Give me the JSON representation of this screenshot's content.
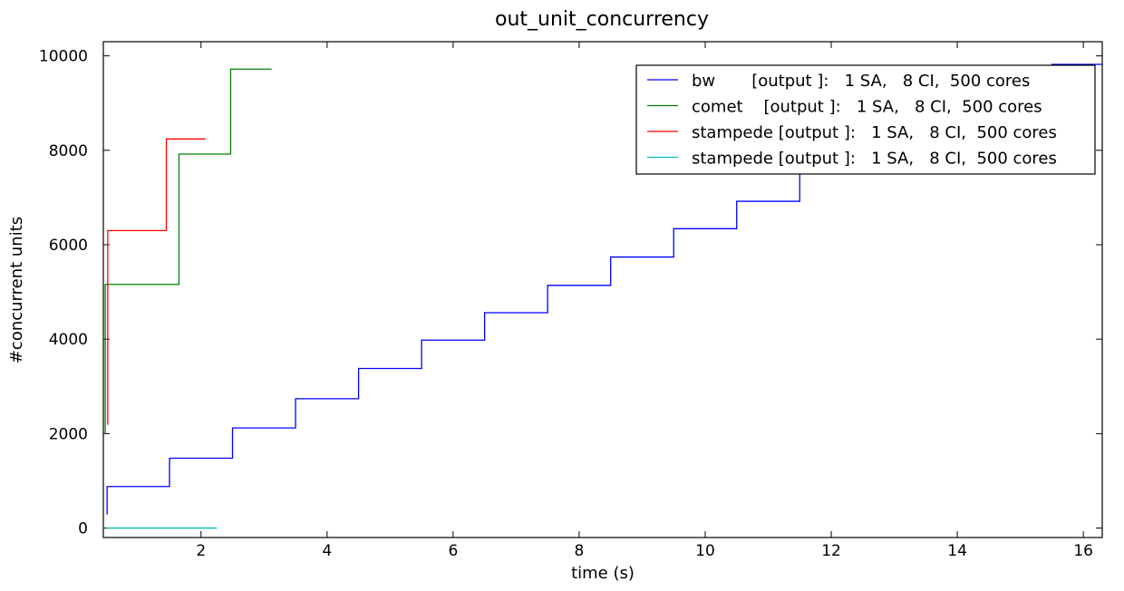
{
  "chart_data": {
    "type": "line",
    "title": "out_unit_concurrency",
    "xlabel": "time (s)",
    "ylabel": "#concurrent units",
    "xlim": [
      0.45,
      16.3
    ],
    "ylim": [
      -200,
      10300
    ],
    "x_ticks": [
      2,
      4,
      6,
      8,
      10,
      12,
      14,
      16
    ],
    "y_ticks": [
      0,
      2000,
      4000,
      6000,
      8000,
      10000
    ],
    "grid": false,
    "legend_position": "upper right",
    "series": [
      {
        "name": "bw       [output ]:   1 SA,   8 CI,  500 cores",
        "color": "#0000ff",
        "step": true,
        "x": [
          0.5,
          0.51,
          1.5,
          2.5,
          3.5,
          4.5,
          5.5,
          6.5,
          7.5,
          8.5,
          9.5,
          10.5,
          11.5,
          12.5,
          13.5,
          14.5,
          15.5,
          16.3
        ],
        "y": [
          300,
          880,
          1480,
          2120,
          2740,
          3380,
          3980,
          4560,
          5140,
          5740,
          6340,
          6920,
          7540,
          8140,
          8740,
          9320,
          9820,
          9820
        ]
      },
      {
        "name": "comet    [output ]:   1 SA,   8 CI,  500 cores",
        "color": "#008000",
        "step": true,
        "x": [
          0.47,
          0.48,
          1.65,
          2.47,
          3.12
        ],
        "y": [
          2000,
          5160,
          7920,
          9720,
          9720
        ]
      },
      {
        "name": "stampede [output ]:   1 SA,   8 CI,  500 cores",
        "color": "#ff0000",
        "step": true,
        "x": [
          0.51,
          0.52,
          1.45,
          2.07
        ],
        "y": [
          2200,
          6300,
          8240,
          8240
        ]
      },
      {
        "name": "stampede [output ]:   1 SA,   8 CI,  500 cores",
        "color": "#00bfbf",
        "step": true,
        "x": [
          0.5,
          2.25
        ],
        "y": [
          0,
          0
        ]
      }
    ]
  }
}
